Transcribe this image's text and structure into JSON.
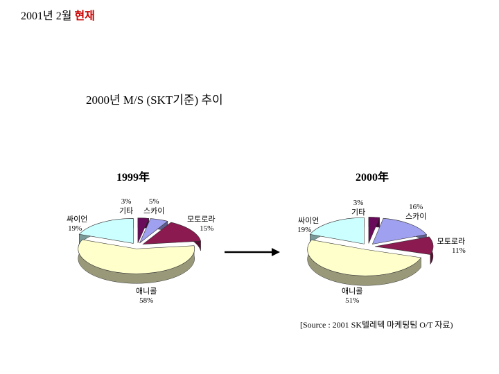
{
  "header": {
    "prefix": "2001년 2월",
    "highlight": "현재"
  },
  "subtitle": "2000년 M/S (SKT기준) 추이",
  "source": "[Source : 2001 SK텔레텍 마케팅팀 O/T 자료)",
  "colors": {
    "기타": "#6a0a5a",
    "스카이": "#a0a0f0",
    "모토로라": "#8a1a50",
    "애니콜": "#ffffcc",
    "싸이언": "#ccffff"
  },
  "chart_data": [
    {
      "type": "pie",
      "title": "1999年",
      "categories": [
        "기타",
        "스카이",
        "모토로라",
        "애니콜",
        "싸이언"
      ],
      "values": [
        3,
        5,
        15,
        58,
        19
      ],
      "value_labels": [
        "3%",
        "5%",
        "15%",
        "58%",
        "19%"
      ]
    },
    {
      "type": "pie",
      "title": "2000年",
      "categories": [
        "기타",
        "스카이",
        "모토로라",
        "애니콜",
        "싸이언"
      ],
      "values": [
        3,
        16,
        11,
        51,
        19
      ],
      "value_labels": [
        "3%",
        "16%",
        "11%",
        "51%",
        "19%"
      ]
    }
  ]
}
